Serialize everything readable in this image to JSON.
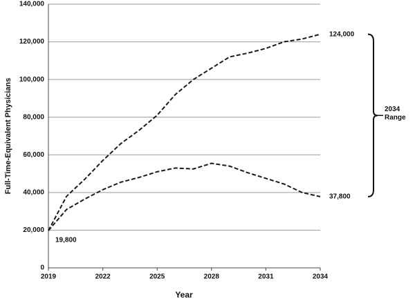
{
  "chart_data": {
    "type": "line",
    "x_label": "Year",
    "y_label": "Full-Time-Equivalent Physicians",
    "x": [
      2019,
      2020,
      2021,
      2022,
      2023,
      2024,
      2025,
      2026,
      2027,
      2028,
      2029,
      2030,
      2031,
      2032,
      2033,
      2034
    ],
    "series": [
      {
        "color": "#1a1a1a",
        "dash": true,
        "values": [
          19800,
          38000,
          47000,
          57000,
          66000,
          73000,
          81000,
          92000,
          100000,
          106000,
          112000,
          114000,
          116500,
          120000,
          121500,
          124000
        ],
        "value_labels": [
          "19,800",
          null,
          null,
          null,
          null,
          null,
          null,
          null,
          null,
          null,
          null,
          null,
          null,
          null,
          null,
          "124,000"
        ]
      },
      {
        "color": "#1a1a1a",
        "dash": true,
        "values": [
          19800,
          31000,
          36500,
          41500,
          45500,
          48000,
          51000,
          53000,
          52500,
          55500,
          54000,
          50500,
          47500,
          44500,
          40000,
          37800
        ],
        "value_labels": [
          null,
          null,
          null,
          null,
          null,
          null,
          null,
          null,
          null,
          null,
          null,
          null,
          null,
          null,
          null,
          "37,800"
        ]
      }
    ],
    "annotation": "2034 Range",
    "xlim": [
      2019,
      2034
    ],
    "xticks": [
      2019,
      2022,
      2025,
      2028,
      2031,
      2034
    ],
    "ylim": [
      0,
      140000
    ],
    "yticks": [
      0,
      {
        "value": 20000,
        "label": "20,000"
      },
      {
        "value": 40000,
        "label": "40,000"
      },
      {
        "value": 60000,
        "label": "60,000"
      },
      {
        "value": 80000,
        "label": "80,000"
      },
      {
        "value": 100000,
        "label": "100,000"
      },
      {
        "value": 120000,
        "label": "120,000"
      },
      {
        "value": 140000,
        "label": "140,000"
      }
    ],
    "grid": true
  }
}
